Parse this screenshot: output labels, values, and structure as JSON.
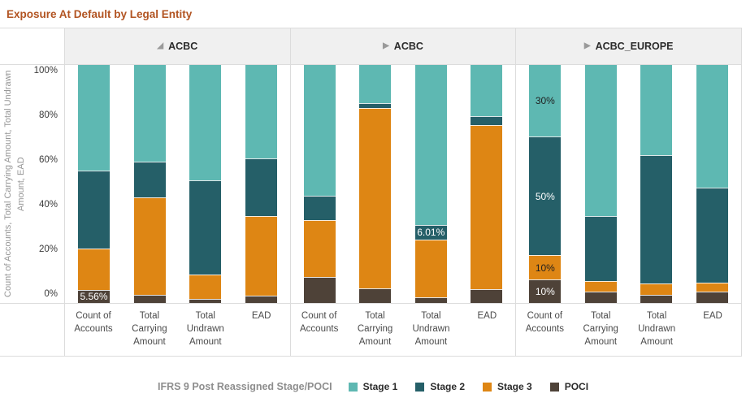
{
  "title": "Exposure At Default by Legal Entity",
  "colors": {
    "title_text": "#B25422",
    "header_bg": "#F0F0F0",
    "border": "#DCDCDC",
    "series": [
      "#5EB8B2",
      "#255F68",
      "#DE8614",
      "#4E4238"
    ]
  },
  "y_axis": {
    "title": "Count of Accounts, Total Carrying Amount, Total Undrawn Amount, EAD",
    "ticks": [
      {
        "label": "100%",
        "value": 100
      },
      {
        "label": "80%",
        "value": 80
      },
      {
        "label": "60%",
        "value": 60
      },
      {
        "label": "40%",
        "value": 40
      },
      {
        "label": "20%",
        "value": 20
      },
      {
        "label": "0%",
        "value": 0
      }
    ]
  },
  "legend": {
    "title": "IFRS 9 Post Reassigned Stage/POCI",
    "items": [
      {
        "label": "Stage 1",
        "color": "#5EB8B2"
      },
      {
        "label": "Stage 2",
        "color": "#255F68"
      },
      {
        "label": "Stage 3",
        "color": "#DE8614"
      },
      {
        "label": "POCI",
        "color": "#4E4238"
      }
    ]
  },
  "chart_data": {
    "type": "bar",
    "stacked": true,
    "title": "Exposure At Default by Legal Entity",
    "ylabel": "Count of Accounts, Total Carrying Amount, Total Undrawn Amount, EAD",
    "ylim": [
      0,
      100
    ],
    "y_tick_labels": [
      "0%",
      "20%",
      "40%",
      "60%",
      "80%",
      "100%"
    ],
    "grid": false,
    "legend_position": "bottom",
    "legend_title": "IFRS 9 Post Reassigned Stage/POCI",
    "series_names": [
      "Stage 1",
      "Stage 2",
      "Stage 3",
      "POCI"
    ],
    "groups": [
      {
        "name": "ACBC",
        "marker": "◢",
        "expanded": true,
        "bars": [
          {
            "category": "Count of Accounts",
            "values": [
              44.4,
              32.8,
              17.24,
              5.56
            ],
            "labels": [
              null,
              null,
              null,
              "5.56%"
            ]
          },
          {
            "category": "Total Carrying Amount",
            "values": [
              40.5,
              15.0,
              41.0,
              3.5
            ],
            "labels": [
              null,
              null,
              null,
              null
            ]
          },
          {
            "category": "Total Undrawn Amount",
            "values": [
              48.6,
              39.3,
              10.5,
              1.6
            ],
            "labels": [
              null,
              null,
              null,
              null
            ]
          },
          {
            "category": "EAD",
            "values": [
              39.1,
              24.5,
              33.5,
              2.9
            ],
            "labels": [
              null,
              null,
              null,
              null
            ]
          }
        ]
      },
      {
        "name": "ACBC",
        "marker": "▶",
        "expanded": false,
        "bars": [
          {
            "category": "Count of Accounts",
            "values": [
              55.0,
              10.3,
              23.7,
              11.0
            ],
            "labels": [
              null,
              null,
              null,
              null
            ]
          },
          {
            "category": "Total Carrying Amount",
            "values": [
              15.9,
              2.3,
              75.7,
              6.1
            ],
            "labels": [
              null,
              null,
              null,
              null
            ]
          },
          {
            "category": "Total Undrawn Amount",
            "values": [
              67.3,
              6.01,
              24.19,
              2.5
            ],
            "labels": [
              null,
              "6.01%",
              null,
              null
            ]
          },
          {
            "category": "EAD",
            "values": [
              21.5,
              3.7,
              69.0,
              5.8
            ],
            "labels": [
              null,
              null,
              null,
              null
            ]
          }
        ]
      },
      {
        "name": "ACBC_EUROPE",
        "marker": "▶",
        "expanded": false,
        "bars": [
          {
            "category": "Count of Accounts",
            "values": [
              30,
              50,
              10,
              10
            ],
            "labels": [
              "30%",
              "50%",
              "10%",
              "10%"
            ]
          },
          {
            "category": "Total Carrying Amount",
            "values": [
              63.6,
              27.1,
              4.4,
              4.9
            ],
            "labels": [
              null,
              null,
              null,
              null
            ]
          },
          {
            "category": "Total Undrawn Amount",
            "values": [
              38.0,
              53.9,
              4.6,
              3.5
            ],
            "labels": [
              null,
              null,
              null,
              null
            ]
          },
          {
            "category": "EAD",
            "values": [
              51.5,
              39.8,
              3.9,
              4.8
            ],
            "labels": [
              null,
              null,
              null,
              null
            ]
          }
        ]
      }
    ]
  }
}
